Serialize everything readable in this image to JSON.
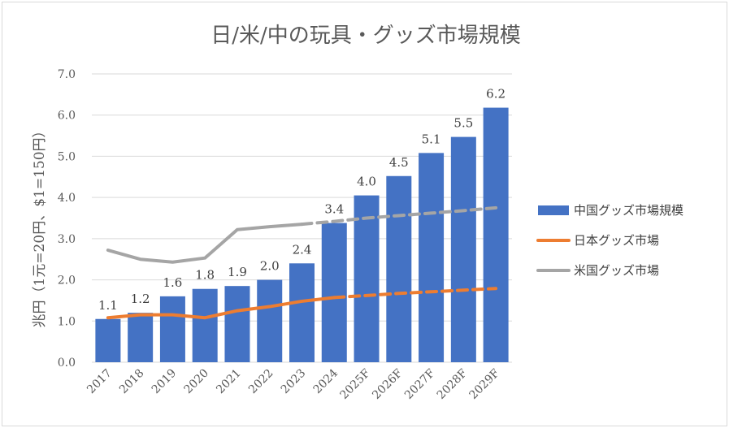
{
  "chart_data": {
    "type": "bar",
    "title": "日/米/中の玩具・グッズ市場規模",
    "ylabel": "兆円（1元=20円、$1=150円）",
    "xlabel": "",
    "ylim": [
      0,
      7
    ],
    "yticks": [
      "0.0",
      "1.0",
      "2.0",
      "3.0",
      "4.0",
      "5.0",
      "6.0",
      "7.0"
    ],
    "grid": true,
    "legend_position": "right",
    "categories": [
      "2017",
      "2018",
      "2019",
      "2020",
      "2021",
      "2022",
      "2023",
      "2024",
      "2025F",
      "2026F",
      "2027F",
      "2028F",
      "2029F"
    ],
    "series": [
      {
        "name": "中国グッズ市場規模",
        "kind": "bar",
        "color": "#4472c4",
        "values": [
          1.05,
          1.2,
          1.6,
          1.78,
          1.85,
          2.0,
          2.4,
          3.38,
          4.05,
          4.52,
          5.08,
          5.47,
          6.18
        ],
        "labels": [
          "1.1",
          "1.2",
          "1.6",
          "1.8",
          "1.9",
          "2.0",
          "2.4",
          "3.4",
          "4.0",
          "4.5",
          "5.1",
          "5.5",
          "6.2"
        ]
      },
      {
        "name": "日本グッズ市場",
        "kind": "line",
        "color": "#ed7d31",
        "dashed_from_index": 7,
        "values": [
          1.08,
          1.15,
          1.15,
          1.08,
          1.25,
          1.35,
          1.48,
          1.57,
          1.62,
          1.67,
          1.71,
          1.75,
          1.79
        ]
      },
      {
        "name": "米国グッズ市場",
        "kind": "line",
        "color": "#a5a5a5",
        "dashed_from_index": 6,
        "values": [
          2.72,
          2.5,
          2.43,
          2.53,
          3.22,
          3.29,
          3.35,
          3.42,
          3.5,
          3.56,
          3.62,
          3.68,
          3.75
        ]
      }
    ]
  }
}
